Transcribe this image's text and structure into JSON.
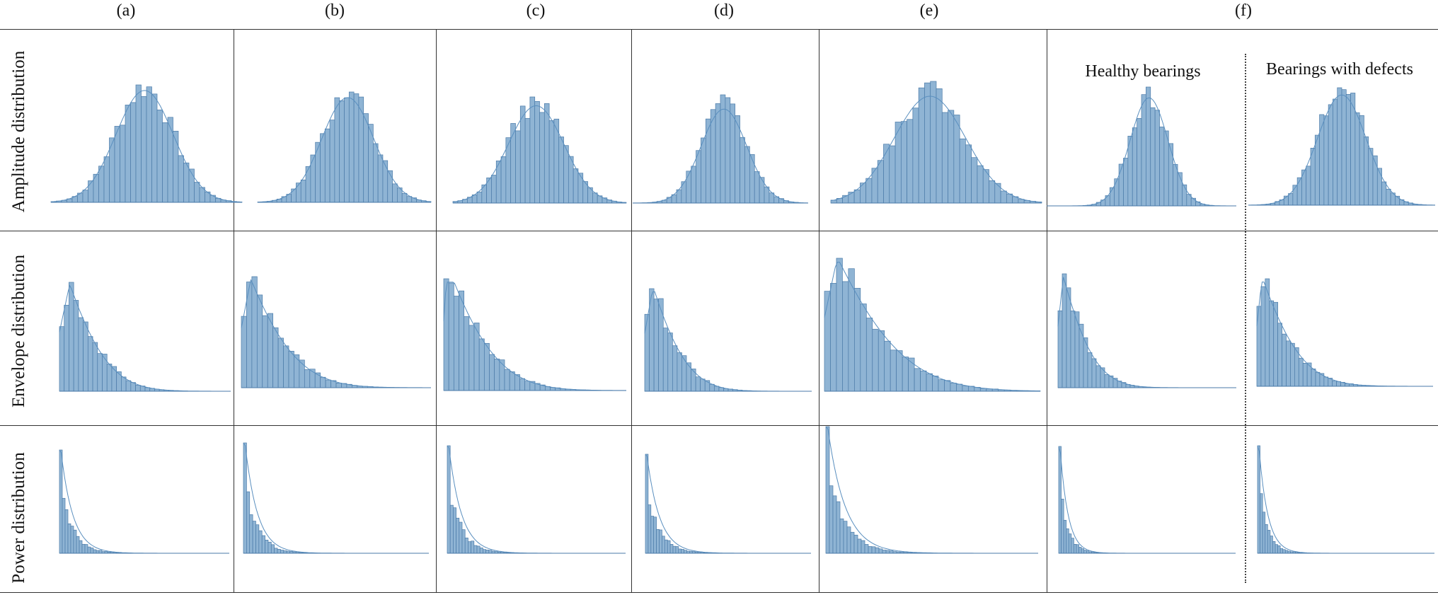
{
  "column_labels": [
    "(a)",
    "(b)",
    "(c)",
    "(d)",
    "(e)",
    "(f)"
  ],
  "row_labels": [
    "Amplitude distribution",
    "Envelope distribution",
    "Power distribution"
  ],
  "subtitles": {
    "healthy": "Healthy bearings",
    "defects": "Bearings with defects"
  },
  "colors": {
    "bar_fill": "#8fb4d4",
    "bar_edge": "#4a7aa8",
    "kde_line": "#5a8fbf",
    "grid_lines": "#333333"
  },
  "chart_data": [
    {
      "type": "histogram",
      "row": "Amplitude distribution",
      "column": "(a)",
      "shape": "gaussian",
      "bins": 36,
      "center": 0.49,
      "spread": 0.15
    },
    {
      "type": "histogram",
      "row": "Amplitude distribution",
      "column": "(b)",
      "shape": "gaussian",
      "bins": 36,
      "center": 0.52,
      "spread": 0.15
    },
    {
      "type": "histogram",
      "row": "Amplitude distribution",
      "column": "(c)",
      "shape": "gaussian",
      "bins": 36,
      "center": 0.48,
      "spread": 0.16
    },
    {
      "type": "histogram",
      "row": "Amplitude distribution",
      "column": "(d)",
      "shape": "gaussian",
      "bins": 36,
      "center": 0.52,
      "spread": 0.13
    },
    {
      "type": "histogram",
      "row": "Amplitude distribution",
      "column": "(e)",
      "shape": "gaussian",
      "bins": 36,
      "center": 0.47,
      "spread": 0.17
    },
    {
      "type": "histogram",
      "row": "Amplitude distribution",
      "column": "(f)",
      "subplot": "Healthy bearings",
      "shape": "gaussian",
      "bins": 42,
      "center": 0.54,
      "spread": 0.1
    },
    {
      "type": "histogram",
      "row": "Amplitude distribution",
      "column": "(f)",
      "subplot": "Bearings with defects",
      "shape": "gaussian",
      "bins": 42,
      "center": 0.5,
      "spread": 0.13
    },
    {
      "type": "histogram",
      "row": "Envelope distribution",
      "column": "(a)",
      "shape": "rayleigh",
      "bins": 36,
      "peak": 0.06,
      "decay": 0.22
    },
    {
      "type": "histogram",
      "row": "Envelope distribution",
      "column": "(b)",
      "shape": "rayleigh",
      "bins": 36,
      "peak": 0.05,
      "decay": 0.24
    },
    {
      "type": "histogram",
      "row": "Envelope distribution",
      "column": "(c)",
      "shape": "rayleigh",
      "bins": 36,
      "peak": 0.02,
      "decay": 0.26
    },
    {
      "type": "histogram",
      "row": "Envelope distribution",
      "column": "(d)",
      "shape": "rayleigh",
      "bins": 36,
      "peak": 0.05,
      "decay": 0.2
    },
    {
      "type": "histogram",
      "row": "Envelope distribution",
      "column": "(e)",
      "shape": "rayleigh",
      "bins": 36,
      "peak": 0.06,
      "decay": 0.3
    },
    {
      "type": "histogram",
      "row": "Envelope distribution",
      "column": "(f)",
      "subplot": "Healthy bearings",
      "shape": "rayleigh",
      "bins": 42,
      "peak": 0.03,
      "decay": 0.17
    },
    {
      "type": "histogram",
      "row": "Envelope distribution",
      "column": "(f)",
      "subplot": "Bearings with defects",
      "shape": "rayleigh",
      "bins": 42,
      "peak": 0.03,
      "decay": 0.22
    },
    {
      "type": "histogram",
      "row": "Power distribution",
      "column": "(a)",
      "shape": "exponential",
      "bins": 60,
      "rate": 14
    },
    {
      "type": "histogram",
      "row": "Power distribution",
      "column": "(b)",
      "shape": "exponential",
      "bins": 60,
      "rate": 15
    },
    {
      "type": "histogram",
      "row": "Power distribution",
      "column": "(c)",
      "shape": "exponential",
      "bins": 60,
      "rate": 14
    },
    {
      "type": "histogram",
      "row": "Power distribution",
      "column": "(d)",
      "shape": "exponential",
      "bins": 60,
      "rate": 13
    },
    {
      "type": "histogram",
      "row": "Power distribution",
      "column": "(e)",
      "shape": "exponential",
      "bins": 60,
      "rate": 12
    },
    {
      "type": "histogram",
      "row": "Power distribution",
      "column": "(f)",
      "subplot": "Healthy bearings",
      "shape": "exponential",
      "bins": 70,
      "rate": 22
    },
    {
      "type": "histogram",
      "row": "Power distribution",
      "column": "(f)",
      "subplot": "Bearings with defects",
      "shape": "exponential",
      "bins": 70,
      "rate": 20
    }
  ]
}
